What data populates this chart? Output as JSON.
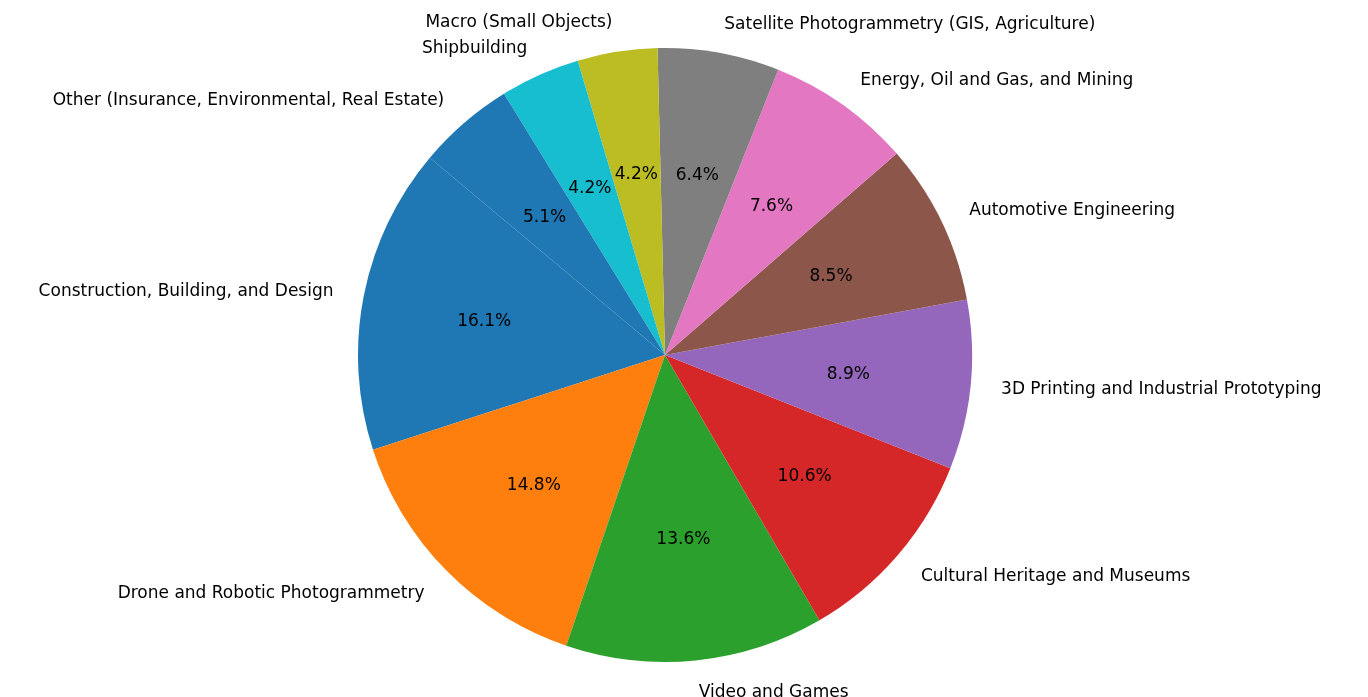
{
  "chart_data": {
    "type": "pie",
    "categories": [
      "Construction, Building, and Design",
      "Drone and Robotic Photogrammetry",
      "Video and Games",
      "Cultural Heritage and Museums",
      "3D Printing and Industrial Prototyping",
      "Automotive Engineering",
      "Energy, Oil and Gas, and Mining",
      "Satellite Photogrammetry (GIS, Agriculture)",
      "Macro (Small Objects)",
      "Shipbuilding",
      "Other (Insurance, Environmental, Real Estate)"
    ],
    "values": [
      16.1,
      14.8,
      13.6,
      10.6,
      8.9,
      8.5,
      7.6,
      6.4,
      4.2,
      4.2,
      5.1
    ],
    "colors": [
      "#1f77b4",
      "#ff7f0e",
      "#2ca02c",
      "#d62728",
      "#9467bd",
      "#8c564b",
      "#e377c2",
      "#7f7f7f",
      "#bcbd22",
      "#17becf",
      "#1f77b4"
    ],
    "value_labels": [
      "16.1%",
      "14.8%",
      "13.6%",
      "10.6%",
      "8.9%",
      "8.5%",
      "7.6%",
      "6.4%",
      "4.2%",
      "4.2%",
      "5.1%"
    ]
  }
}
